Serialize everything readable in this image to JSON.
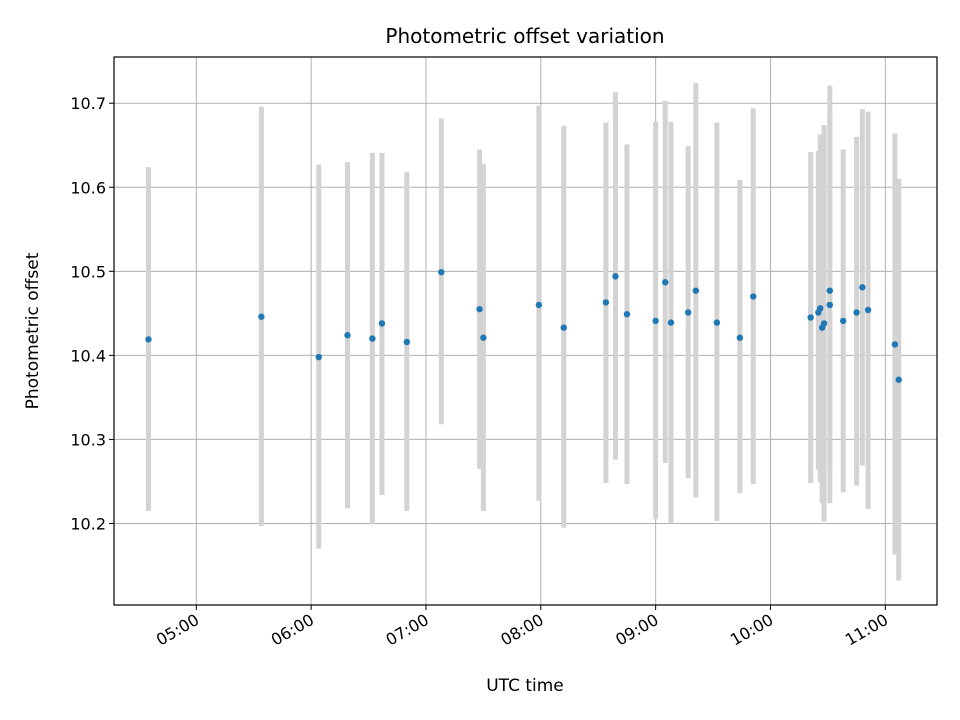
{
  "chart_data": {
    "type": "scatter",
    "title": "Photometric offset variation",
    "xlabel": "UTC time",
    "ylabel": "Photometric offset",
    "x_unit": "time of day (UTC)",
    "x_ticks": [
      "05:00",
      "06:00",
      "07:00",
      "08:00",
      "09:00",
      "10:00",
      "11:00"
    ],
    "xlim": [
      "04:17",
      "11:27"
    ],
    "y_ticks": [
      10.2,
      10.3,
      10.4,
      10.5,
      10.6,
      10.7
    ],
    "ylim": [
      10.103,
      10.755
    ],
    "grid": true,
    "point_color": "#1f77b4",
    "errorbar_color": "#d3d3d3",
    "series": [
      {
        "points": [
          {
            "x": "04:35",
            "y": 10.419,
            "lo": 10.215,
            "hi": 10.624
          },
          {
            "x": "05:34",
            "y": 10.446,
            "lo": 10.197,
            "hi": 10.696
          },
          {
            "x": "06:04",
            "y": 10.398,
            "lo": 10.17,
            "hi": 10.627
          },
          {
            "x": "06:19",
            "y": 10.424,
            "lo": 10.218,
            "hi": 10.63
          },
          {
            "x": "06:32",
            "y": 10.42,
            "lo": 10.199,
            "hi": 10.641
          },
          {
            "x": "06:37",
            "y": 10.438,
            "lo": 10.234,
            "hi": 10.641
          },
          {
            "x": "06:50",
            "y": 10.416,
            "lo": 10.215,
            "hi": 10.618
          },
          {
            "x": "07:08",
            "y": 10.499,
            "lo": 10.318,
            "hi": 10.682
          },
          {
            "x": "07:28",
            "y": 10.455,
            "lo": 10.265,
            "hi": 10.645
          },
          {
            "x": "07:30",
            "y": 10.421,
            "lo": 10.215,
            "hi": 10.628
          },
          {
            "x": "07:59",
            "y": 10.46,
            "lo": 10.227,
            "hi": 10.697
          },
          {
            "x": "08:12",
            "y": 10.433,
            "lo": 10.195,
            "hi": 10.673
          },
          {
            "x": "08:34",
            "y": 10.463,
            "lo": 10.248,
            "hi": 10.677
          },
          {
            "x": "08:39",
            "y": 10.494,
            "lo": 10.276,
            "hi": 10.713
          },
          {
            "x": "08:45",
            "y": 10.449,
            "lo": 10.247,
            "hi": 10.651
          },
          {
            "x": "09:00",
            "y": 10.441,
            "lo": 10.205,
            "hi": 10.678
          },
          {
            "x": "09:05",
            "y": 10.487,
            "lo": 10.272,
            "hi": 10.703
          },
          {
            "x": "09:08",
            "y": 10.439,
            "lo": 10.2,
            "hi": 10.678
          },
          {
            "x": "09:17",
            "y": 10.451,
            "lo": 10.254,
            "hi": 10.649
          },
          {
            "x": "09:21",
            "y": 10.477,
            "lo": 10.231,
            "hi": 10.724
          },
          {
            "x": "09:32",
            "y": 10.439,
            "lo": 10.203,
            "hi": 10.677
          },
          {
            "x": "09:44",
            "y": 10.421,
            "lo": 10.236,
            "hi": 10.609
          },
          {
            "x": "09:51",
            "y": 10.47,
            "lo": 10.247,
            "hi": 10.694
          },
          {
            "x": "10:21",
            "y": 10.445,
            "lo": 10.248,
            "hi": 10.642
          },
          {
            "x": "10:25",
            "y": 10.451,
            "lo": 10.264,
            "hi": 10.643
          },
          {
            "x": "10:26",
            "y": 10.456,
            "lo": 10.249,
            "hi": 10.663
          },
          {
            "x": "10:27",
            "y": 10.433,
            "lo": 10.224,
            "hi": 10.648
          },
          {
            "x": "10:28",
            "y": 10.438,
            "lo": 10.202,
            "hi": 10.674
          },
          {
            "x": "10:31",
            "y": 10.46,
            "lo": 10.224,
            "hi": 10.721
          },
          {
            "x": "10:31",
            "y": 10.477,
            "lo": 10.264,
            "hi": 10.69
          },
          {
            "x": "10:38",
            "y": 10.441,
            "lo": 10.237,
            "hi": 10.645
          },
          {
            "x": "10:45",
            "y": 10.451,
            "lo": 10.245,
            "hi": 10.66
          },
          {
            "x": "10:48",
            "y": 10.481,
            "lo": 10.269,
            "hi": 10.693
          },
          {
            "x": "10:51",
            "y": 10.454,
            "lo": 10.217,
            "hi": 10.69
          },
          {
            "x": "11:05",
            "y": 10.413,
            "lo": 10.163,
            "hi": 10.664
          },
          {
            "x": "11:07",
            "y": 10.371,
            "lo": 10.132,
            "hi": 10.61
          }
        ]
      }
    ]
  }
}
